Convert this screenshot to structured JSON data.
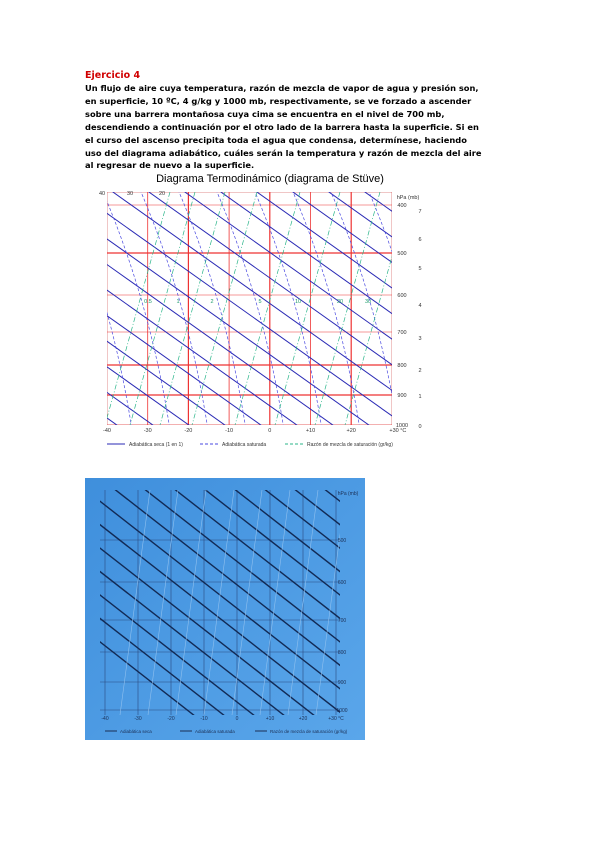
{
  "exercise": {
    "title": "Ejercicio 4",
    "lines": [
      "Un flujo de aire cuya temperatura, razón de mezcla de vapor de agua y presión son,",
      "en superficie, 10 ºC, 4 g/kg y 1000 mb, respectivamente, se ve forzado a ascender",
      "sobre una barrera montañosa cuya cima se encuentra en el nivel de 700 mb,",
      "descendiendo a continuación por el otro lado de la barrera hasta la superficie. Si en",
      "el curso del ascenso precipita toda el agua que condensa, determínese, haciendo",
      "uso del diagrama adiabático, cuáles serán la temperatura y razón de mezcla del aire",
      "al regresar de nuevo a la superficie."
    ]
  },
  "diagram1": {
    "title": "Diagrama Termodinámico (diagrama de Stüve)",
    "pressure_unit": "hPa (mb)",
    "temperature_labels": [
      "-40",
      "-30",
      "-20",
      "-10",
      "0",
      "+10",
      "+20",
      "+30 °C"
    ],
    "pressure_labels": [
      "400",
      "500",
      "600",
      "700",
      "800",
      "900",
      "1000"
    ],
    "height_labels": [
      "7",
      "6",
      "5",
      "4",
      "3",
      "2",
      "1",
      "0"
    ],
    "mixing_ratio_labels": [
      "0.5",
      "1",
      "2",
      "5",
      "10",
      "20",
      "30"
    ],
    "top_labels": [
      "40",
      "30",
      "20"
    ],
    "legend": [
      "Adiabática seca (1 en 1)",
      "Adiabática saturada",
      "Razón de mezcla de saturación (gr/kg)"
    ]
  },
  "diagram2": {
    "pressure_unit": "hPa (mb)",
    "temperature_labels": [
      "-40",
      "-30",
      "-20",
      "-10",
      "0",
      "+10",
      "+20",
      "+30 °C"
    ],
    "pressure_labels": [
      "500",
      "600",
      "700",
      "800",
      "900",
      "1000"
    ],
    "legend": [
      "Adiabática seca",
      "Adiabática saturada",
      "Razón de mezcla de saturación (gr/kg)"
    ]
  }
}
